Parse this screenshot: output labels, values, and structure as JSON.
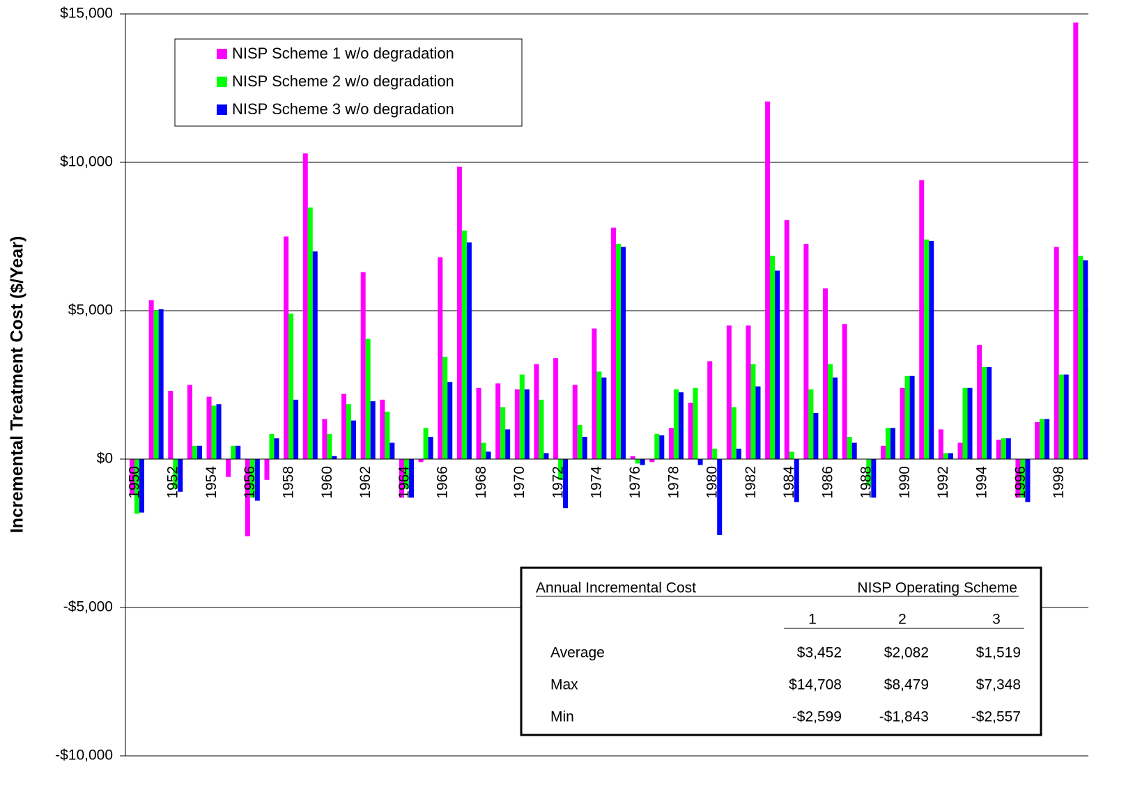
{
  "chart_data": {
    "type": "bar",
    "y_label": "Incremental Treatment Cost ($/Year)",
    "categories": [
      "1950",
      null,
      "1952",
      null,
      "1954",
      null,
      "1956",
      null,
      "1958",
      null,
      "1960",
      null,
      "1962",
      null,
      "1964",
      null,
      "1966",
      null,
      "1968",
      null,
      "1970",
      null,
      "1972",
      null,
      "1974",
      null,
      "1976",
      null,
      "1978",
      null,
      "1980",
      null,
      "1982",
      null,
      "1984",
      null,
      "1986",
      null,
      "1988",
      null,
      "1990",
      null,
      "1992",
      null,
      "1994",
      null,
      "1996",
      null,
      "1998",
      null
    ],
    "series": [
      {
        "name": "NISP Scheme 1 w/o degradation",
        "color": "#ff00ff",
        "values": [
          -1200,
          5350,
          2300,
          2500,
          2100,
          -600,
          -2599,
          -700,
          7500,
          10300,
          1350,
          2200,
          6300,
          2000,
          -1300,
          -100,
          6800,
          9850,
          2400,
          2550,
          2350,
          3200,
          3400,
          2500,
          4400,
          7800,
          100,
          -100,
          1050,
          1900,
          3300,
          4500,
          4500,
          12050,
          8050,
          7250,
          5750,
          4550,
          0,
          450,
          2400,
          9400,
          1000,
          550,
          3850,
          650,
          -1300,
          1250,
          7150,
          14708
        ]
      },
      {
        "name": "NISP Scheme 2 w/o degradation",
        "color": "#00ff00",
        "values": [
          -1843,
          5000,
          -1000,
          450,
          1800,
          450,
          -1300,
          850,
          4900,
          8479,
          850,
          1850,
          4050,
          1600,
          -1000,
          1050,
          3450,
          7700,
          550,
          1750,
          2850,
          2000,
          -700,
          1150,
          2950,
          7250,
          -150,
          850,
          2350,
          2400,
          350,
          1750,
          3200,
          6850,
          250,
          2350,
          3200,
          750,
          -900,
          1050,
          2800,
          7400,
          200,
          2400,
          3100,
          700,
          -1300,
          1350,
          2850,
          6850
        ]
      },
      {
        "name": "NISP Scheme 3 w/o degradation",
        "color": "#0000ff",
        "values": [
          -1800,
          5050,
          -1100,
          450,
          1850,
          450,
          -1400,
          700,
          2000,
          7000,
          100,
          1300,
          1950,
          550,
          -1300,
          750,
          2600,
          7300,
          250,
          1000,
          2350,
          200,
          -1650,
          750,
          2750,
          7150,
          -200,
          800,
          2250,
          -200,
          -2557,
          350,
          2450,
          6350,
          -1450,
          1550,
          2750,
          550,
          -1300,
          1050,
          2800,
          7348,
          200,
          2400,
          3100,
          700,
          -1450,
          1350,
          2850,
          6700
        ]
      }
    ],
    "ylim": [
      -10000,
      15000
    ],
    "yticks": [
      {
        "value": -10000,
        "label": "-$10,000"
      },
      {
        "value": -5000,
        "label": "-$5,000"
      },
      {
        "value": 0,
        "label": "$0"
      },
      {
        "value": 5000,
        "label": "$5,000"
      },
      {
        "value": 10000,
        "label": "$10,000"
      },
      {
        "value": 15000,
        "label": "$15,000"
      }
    ],
    "grid": true,
    "legend": "upper left"
  },
  "table": {
    "title": "Annual Incremental Cost",
    "group_header": "NISP Operating Scheme",
    "columns": [
      "1",
      "2",
      "3"
    ],
    "rows": [
      [
        "Average",
        "$3,452",
        "$2,082",
        "$1,519"
      ],
      [
        "Max",
        "$14,708",
        "$8,479",
        "$7,348"
      ],
      [
        "Min",
        "-$2,599",
        "-$1,843",
        "-$2,557"
      ]
    ]
  }
}
